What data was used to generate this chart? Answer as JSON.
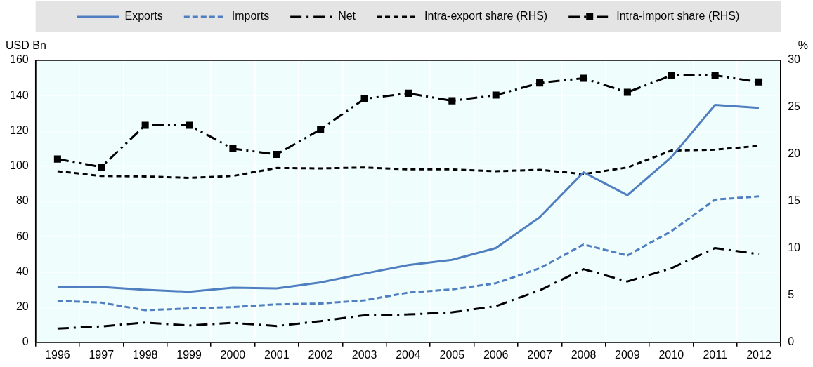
{
  "chart_data": {
    "type": "line",
    "ylabel": "USD Bn",
    "y2label": "%",
    "categories": [
      "1996",
      "1997",
      "1998",
      "1999",
      "2000",
      "2001",
      "2002",
      "2003",
      "2004",
      "2005",
      "2006",
      "2007",
      "2008",
      "2009",
      "2010",
      "2011",
      "2012"
    ],
    "ylim": [
      0,
      160
    ],
    "yticks": [
      0,
      20,
      40,
      60,
      80,
      100,
      120,
      140,
      160
    ],
    "y2lim": [
      0,
      30
    ],
    "y2ticks": [
      0,
      5,
      10,
      15,
      20,
      25,
      30
    ],
    "grid": true,
    "legend": "top",
    "marker": "none",
    "series": [
      {
        "name": "Exports",
        "color": "#4f7fc0",
        "line_style": "solid",
        "values": [
          31.3,
          31.4,
          29.8,
          28.7,
          31,
          30.6,
          34,
          39,
          43.8,
          46.8,
          53.5,
          71,
          96.5,
          83.5,
          105,
          134.7,
          133
        ]
      },
      {
        "name": "Imports",
        "color": "#4f7fc0",
        "line_style": "dashed",
        "values": [
          23.5,
          22.5,
          18.2,
          19.2,
          20,
          21.5,
          22,
          23.8,
          28.2,
          30,
          33.5,
          42,
          55.5,
          49.3,
          63,
          81,
          82.8
        ]
      },
      {
        "name": "Net",
        "color": "#000000",
        "line_style": "dashdot",
        "values": [
          7.8,
          9,
          11.2,
          9.5,
          11,
          9.2,
          12,
          15.3,
          15.8,
          17,
          20.5,
          29.5,
          41.5,
          34.5,
          42,
          53.5,
          50
        ]
      },
      {
        "name": "Intra-export share (RHS)",
        "color": "#000000",
        "line_style": "dashed",
        "axis": "y2",
        "values": [
          18.2,
          17.7,
          17.65,
          17.5,
          17.7,
          18.55,
          18.5,
          18.6,
          18.4,
          18.4,
          18.2,
          18.35,
          17.9,
          18.6,
          20.4,
          20.5,
          20.9
        ]
      },
      {
        "name": "Intra-import share (RHS)",
        "color": "#000000",
        "line_style": "dashdotdot",
        "marker": "square",
        "axis": "y2",
        "values": [
          19.5,
          18.65,
          23.1,
          23.1,
          20.6,
          20,
          22.65,
          25.9,
          26.5,
          25.7,
          26.3,
          27.6,
          28.1,
          26.6,
          28.4,
          28.4,
          27.7
        ]
      }
    ]
  }
}
